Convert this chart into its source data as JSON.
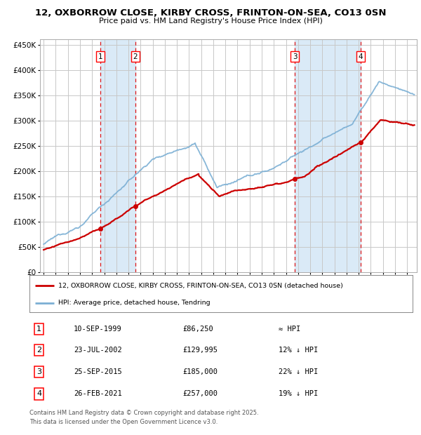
{
  "title": "12, OXBORROW CLOSE, KIRBY CROSS, FRINTON-ON-SEA, CO13 0SN",
  "subtitle": "Price paid vs. HM Land Registry's House Price Index (HPI)",
  "legend_line1": "12, OXBORROW CLOSE, KIRBY CROSS, FRINTON-ON-SEA, CO13 0SN (detached house)",
  "legend_line2": "HPI: Average price, detached house, Tendring",
  "hpi_color": "#7bafd4",
  "price_color": "#cc0000",
  "background_color": "#ffffff",
  "grid_color": "#c8c8c8",
  "shade_color": "#daeaf7",
  "transactions": [
    {
      "label": "1",
      "date": "10-SEP-1999",
      "price": 86250,
      "note": "≈ HPI",
      "x_year": 1999.69
    },
    {
      "label": "2",
      "date": "23-JUL-2002",
      "price": 129995,
      "note": "12% ↓ HPI",
      "x_year": 2002.56
    },
    {
      "label": "3",
      "date": "25-SEP-2015",
      "price": 185000,
      "note": "22% ↓ HPI",
      "x_year": 2015.73
    },
    {
      "label": "4",
      "date": "26-FEB-2021",
      "price": 257000,
      "note": "19% ↓ HPI",
      "x_year": 2021.15
    }
  ],
  "footnote": "Contains HM Land Registry data © Crown copyright and database right 2025.\nThis data is licensed under the Open Government Licence v3.0.",
  "ylim": [
    0,
    462000
  ],
  "yticks": [
    0,
    50000,
    100000,
    150000,
    200000,
    250000,
    300000,
    350000,
    400000,
    450000
  ],
  "xlim_start": 1994.7,
  "xlim_end": 2025.8
}
